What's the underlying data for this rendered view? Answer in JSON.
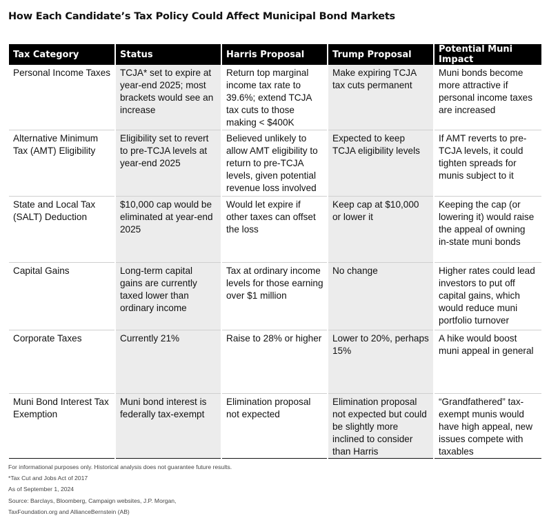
{
  "title": "How Each Candidate’s Tax Policy Could Affect Municipal Bond Markets",
  "table": {
    "headers": [
      "Tax Category",
      "Status",
      "Harris Proposal",
      "Trump Proposal",
      "Potential Muni Impact"
    ],
    "rows": [
      {
        "category": "Personal Income Taxes",
        "status": "TCJA* set to expire at year-end 2025; most brackets would see an increase",
        "harris": "Return top marginal income tax rate to 39.6%; extend TCJA tax cuts to those making < $400K",
        "trump": "Make expiring TCJA tax cuts permanent",
        "impact": "Muni bonds become more attractive if personal income taxes are increased"
      },
      {
        "category": "Alternative Minimum Tax (AMT) Eligibility",
        "status": "Eligibility set to revert to pre-TCJA levels at year-end 2025",
        "harris": "Believed unlikely to allow AMT eligibility to return to pre-TCJA levels, given potential revenue loss involved",
        "trump": "Expected to keep TCJA eligibility levels",
        "impact": "If AMT reverts to pre-TCJA levels, it could tighten spreads for munis subject to it"
      },
      {
        "category": "State and Local Tax (SALT) Deduction",
        "status": "$10,000 cap would be eliminated at year-end 2025",
        "harris": "Would let expire if other taxes can offset the loss",
        "trump": "Keep cap at  $10,000 or lower it",
        "impact": "Keeping the cap (or lowering it) would raise the appeal of owning in-state muni bonds"
      },
      {
        "category": "Capital Gains",
        "status": "Long-term capital gains are currently taxed lower than ordinary income",
        "harris": "Tax at ordinary income levels for those earning over $1 million",
        "trump": "No change",
        "impact": "Higher rates could lead investors to put off capital gains, which would reduce muni portfolio turnover"
      },
      {
        "category": "Corporate Taxes",
        "status": "Currently 21%",
        "harris": "Raise to 28% or higher",
        "trump": "Lower to 20%, perhaps 15%",
        "impact": "A hike would boost muni appeal in general"
      },
      {
        "category": "Muni Bond Interest Tax Exemption",
        "status": "Muni bond interest is federally tax-exempt",
        "harris": "Elimination proposal not expected",
        "trump": "Elimination proposal not expected but could be slightly more inclined to consider than Harris",
        "impact": "“Grandfathered” tax-exempt munis would have high appeal, new issues compete with taxables"
      }
    ]
  },
  "footer": {
    "disclaimer": "For informational purposes only. Historical analysis does not guarantee future results.",
    "footnote": "*Tax Cut and Jobs Act of 2017",
    "as_of": "As of September 1, 2024",
    "source_line1": "Source: Barclays, Bloomberg, Campaign websites, J.P. Morgan,",
    "source_line2": "TaxFoundation.org and AllianceBernstein (AB)"
  }
}
